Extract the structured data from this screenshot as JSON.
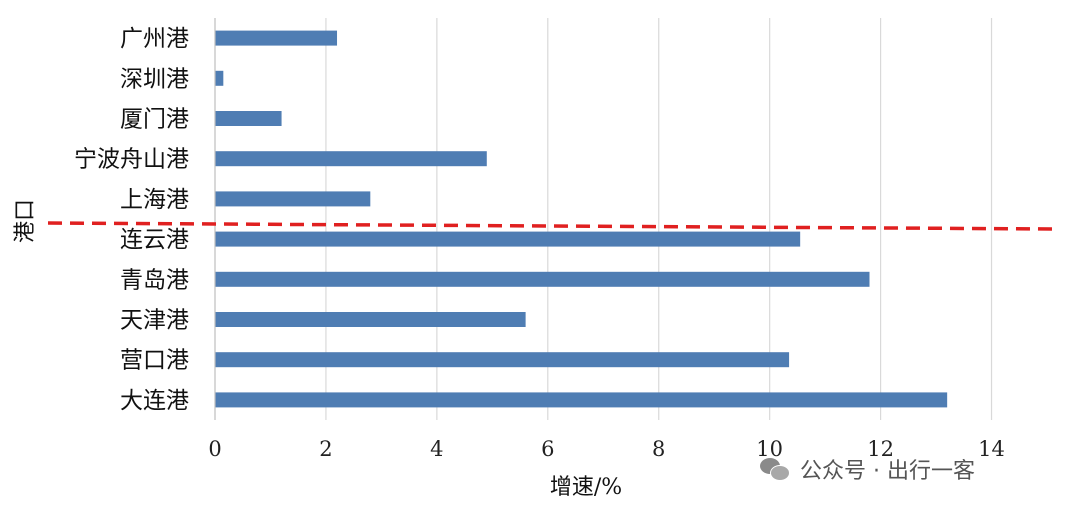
{
  "chart_data": {
    "type": "bar",
    "orientation": "horizontal",
    "categories": [
      "广州港",
      "深圳港",
      "厦门港",
      "宁波舟山港",
      "上海港",
      "连云港",
      "青岛港",
      "天津港",
      "营口港",
      "大连港"
    ],
    "values": [
      2.2,
      0.15,
      1.2,
      4.9,
      2.8,
      10.55,
      11.8,
      5.6,
      10.35,
      13.2
    ],
    "xlabel": "增速/%",
    "ylabel": "港口",
    "xlim": [
      0,
      15
    ],
    "xticks": [
      0,
      2,
      4,
      6,
      8,
      10,
      12,
      14
    ],
    "grid": "vertical",
    "legend": "none",
    "bar_color": "#4f7db3",
    "annotation": {
      "type": "dashed-line",
      "color": "#e02020",
      "between": [
        "上海港",
        "连云港"
      ]
    }
  },
  "watermark": {
    "text": "公众号 · 出行一客",
    "icon": "wechat-icon"
  }
}
